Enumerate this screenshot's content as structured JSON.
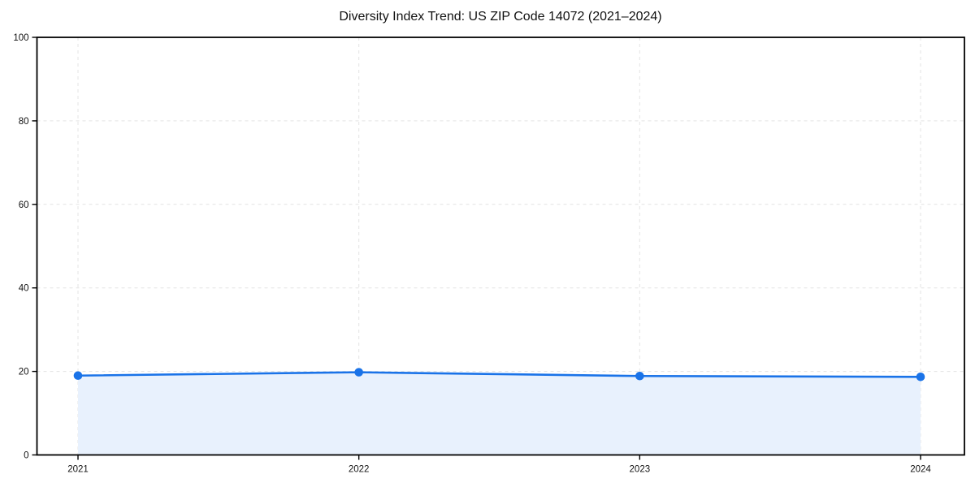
{
  "chart_data": {
    "type": "line",
    "title": "Diversity Index Trend: US ZIP Code 14072 (2021–2024)",
    "xlabel": "",
    "ylabel": "",
    "categories": [
      "2021",
      "2022",
      "2023",
      "2024"
    ],
    "series": [
      {
        "name": "Diversity Index",
        "values": [
          19.0,
          19.8,
          18.9,
          18.7
        ]
      }
    ],
    "ylim": [
      0,
      100
    ],
    "yticks": [
      0,
      20,
      40,
      60,
      80,
      100
    ],
    "grid": "dashed-both-axes",
    "legend": "none",
    "area_fill": true,
    "marker": "circle",
    "colors": {
      "line": "#1a73e8",
      "marker": "#1a73e8",
      "fill": "#e8f1fd",
      "grid": "#e3e3e3",
      "spine": "#000000",
      "text": "#111111",
      "background": "#ffffff"
    }
  }
}
